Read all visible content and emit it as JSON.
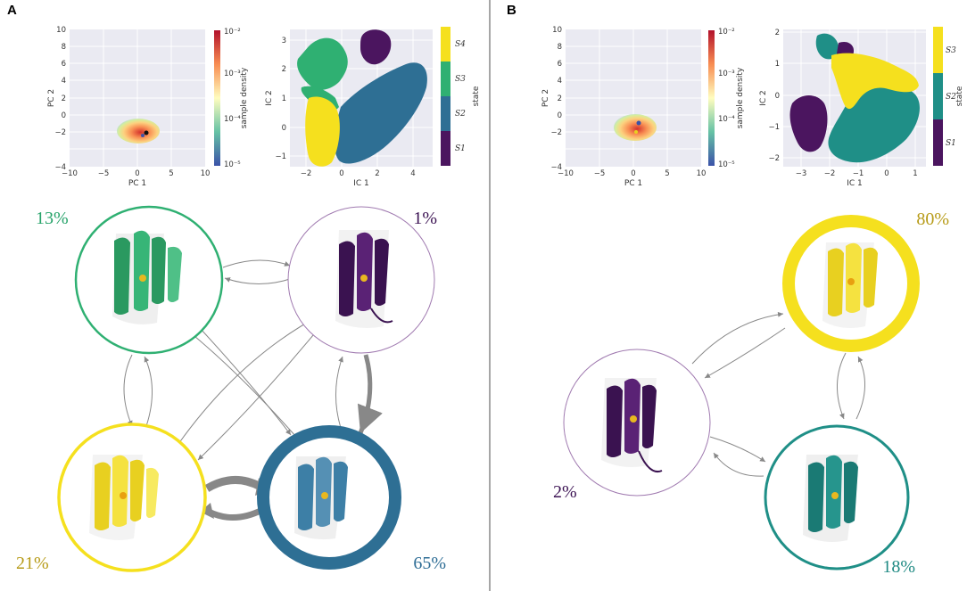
{
  "panels": [
    {
      "letter": "A",
      "pca": {
        "xlabel": "PC 1",
        "ylabel": "PC 2",
        "xticks": [
          "−10",
          "−5",
          "0",
          "5",
          "10"
        ],
        "yticks": [
          "10",
          "8",
          "6",
          "4",
          "2",
          "0",
          "−2",
          "−4"
        ],
        "colorbar_label": "sample density",
        "colorbar_ticks": [
          "10⁻²",
          "10⁻³",
          "10⁻⁴",
          "10⁻⁵"
        ]
      },
      "tica": {
        "xlabel": "IC 1",
        "ylabel": "IC 2",
        "xticks": [
          "−2",
          "0",
          "2",
          "4"
        ],
        "yticks": [
          "3",
          "2",
          "1",
          "0",
          "−1"
        ],
        "colorbar_label": "state",
        "states": [
          "S4",
          "S3",
          "S2",
          "S1"
        ]
      },
      "percentages": [
        "13%",
        "1%",
        "21%",
        "65%"
      ]
    },
    {
      "letter": "B",
      "pca": {
        "xlabel": "PC 1",
        "ylabel": "PC 2",
        "xticks": [
          "−10",
          "−5",
          "0",
          "5",
          "10"
        ],
        "yticks": [
          "10",
          "8",
          "6",
          "4",
          "2",
          "0",
          "−2",
          "−4"
        ],
        "colorbar_label": "sample density",
        "colorbar_ticks": [
          "10⁻²",
          "10⁻³",
          "10⁻⁴",
          "10⁻⁵"
        ]
      },
      "tica": {
        "xlabel": "IC 1",
        "ylabel": "IC 2",
        "xticks": [
          "−3",
          "−2",
          "−1",
          "0",
          "1"
        ],
        "yticks": [
          "2",
          "1",
          "0",
          "−1",
          "−2"
        ],
        "colorbar_label": "state",
        "states": [
          "S3",
          "S2",
          "S1"
        ]
      },
      "percentages": [
        "80%",
        "2%",
        "18%"
      ]
    }
  ],
  "colors": {
    "state_yellow": "#f5e01e",
    "state_green": "#2fb072",
    "state_blue": "#2e6f94",
    "state_purple": "#4b155f",
    "state_teal": "#1f8f87",
    "pct_green": "#27a36a",
    "pct_purple": "#3d1454",
    "pct_gold": "#b79b18",
    "pct_blue": "#2f6e96",
    "pct_teal": "#1f8a83",
    "arrow": "#888888",
    "divider": "#888888",
    "plot_bg": "#eaeaf2"
  }
}
